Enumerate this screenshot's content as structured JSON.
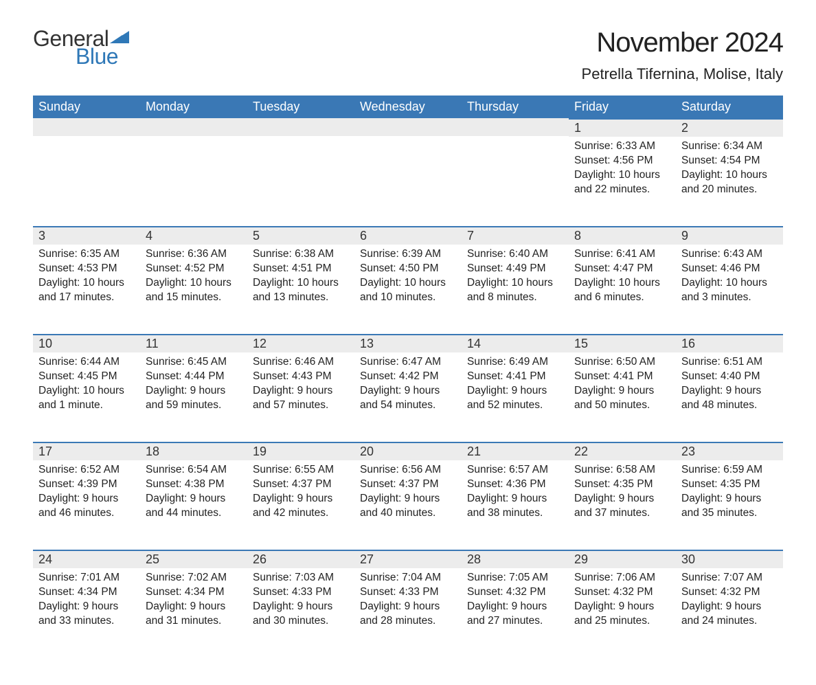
{
  "brand": {
    "general": "General",
    "blue": "Blue",
    "flag_color": "#2f78b7"
  },
  "title": "November 2024",
  "subtitle": "Petrella Tifernina, Molise, Italy",
  "colors": {
    "header_bg": "#3a78b5",
    "header_text": "#ffffff",
    "daynum_bg": "#ececec",
    "daynum_border": "#3a78b5",
    "text": "#222222",
    "brand_blue": "#2f78b7"
  },
  "weekdays": [
    "Sunday",
    "Monday",
    "Tuesday",
    "Wednesday",
    "Thursday",
    "Friday",
    "Saturday"
  ],
  "weeks": [
    [
      null,
      null,
      null,
      null,
      null,
      {
        "n": "1",
        "sunrise": "Sunrise: 6:33 AM",
        "sunset": "Sunset: 4:56 PM",
        "day1": "Daylight: 10 hours",
        "day2": "and 22 minutes."
      },
      {
        "n": "2",
        "sunrise": "Sunrise: 6:34 AM",
        "sunset": "Sunset: 4:54 PM",
        "day1": "Daylight: 10 hours",
        "day2": "and 20 minutes."
      }
    ],
    [
      {
        "n": "3",
        "sunrise": "Sunrise: 6:35 AM",
        "sunset": "Sunset: 4:53 PM",
        "day1": "Daylight: 10 hours",
        "day2": "and 17 minutes."
      },
      {
        "n": "4",
        "sunrise": "Sunrise: 6:36 AM",
        "sunset": "Sunset: 4:52 PM",
        "day1": "Daylight: 10 hours",
        "day2": "and 15 minutes."
      },
      {
        "n": "5",
        "sunrise": "Sunrise: 6:38 AM",
        "sunset": "Sunset: 4:51 PM",
        "day1": "Daylight: 10 hours",
        "day2": "and 13 minutes."
      },
      {
        "n": "6",
        "sunrise": "Sunrise: 6:39 AM",
        "sunset": "Sunset: 4:50 PM",
        "day1": "Daylight: 10 hours",
        "day2": "and 10 minutes."
      },
      {
        "n": "7",
        "sunrise": "Sunrise: 6:40 AM",
        "sunset": "Sunset: 4:49 PM",
        "day1": "Daylight: 10 hours",
        "day2": "and 8 minutes."
      },
      {
        "n": "8",
        "sunrise": "Sunrise: 6:41 AM",
        "sunset": "Sunset: 4:47 PM",
        "day1": "Daylight: 10 hours",
        "day2": "and 6 minutes."
      },
      {
        "n": "9",
        "sunrise": "Sunrise: 6:43 AM",
        "sunset": "Sunset: 4:46 PM",
        "day1": "Daylight: 10 hours",
        "day2": "and 3 minutes."
      }
    ],
    [
      {
        "n": "10",
        "sunrise": "Sunrise: 6:44 AM",
        "sunset": "Sunset: 4:45 PM",
        "day1": "Daylight: 10 hours",
        "day2": "and 1 minute."
      },
      {
        "n": "11",
        "sunrise": "Sunrise: 6:45 AM",
        "sunset": "Sunset: 4:44 PM",
        "day1": "Daylight: 9 hours",
        "day2": "and 59 minutes."
      },
      {
        "n": "12",
        "sunrise": "Sunrise: 6:46 AM",
        "sunset": "Sunset: 4:43 PM",
        "day1": "Daylight: 9 hours",
        "day2": "and 57 minutes."
      },
      {
        "n": "13",
        "sunrise": "Sunrise: 6:47 AM",
        "sunset": "Sunset: 4:42 PM",
        "day1": "Daylight: 9 hours",
        "day2": "and 54 minutes."
      },
      {
        "n": "14",
        "sunrise": "Sunrise: 6:49 AM",
        "sunset": "Sunset: 4:41 PM",
        "day1": "Daylight: 9 hours",
        "day2": "and 52 minutes."
      },
      {
        "n": "15",
        "sunrise": "Sunrise: 6:50 AM",
        "sunset": "Sunset: 4:41 PM",
        "day1": "Daylight: 9 hours",
        "day2": "and 50 minutes."
      },
      {
        "n": "16",
        "sunrise": "Sunrise: 6:51 AM",
        "sunset": "Sunset: 4:40 PM",
        "day1": "Daylight: 9 hours",
        "day2": "and 48 minutes."
      }
    ],
    [
      {
        "n": "17",
        "sunrise": "Sunrise: 6:52 AM",
        "sunset": "Sunset: 4:39 PM",
        "day1": "Daylight: 9 hours",
        "day2": "and 46 minutes."
      },
      {
        "n": "18",
        "sunrise": "Sunrise: 6:54 AM",
        "sunset": "Sunset: 4:38 PM",
        "day1": "Daylight: 9 hours",
        "day2": "and 44 minutes."
      },
      {
        "n": "19",
        "sunrise": "Sunrise: 6:55 AM",
        "sunset": "Sunset: 4:37 PM",
        "day1": "Daylight: 9 hours",
        "day2": "and 42 minutes."
      },
      {
        "n": "20",
        "sunrise": "Sunrise: 6:56 AM",
        "sunset": "Sunset: 4:37 PM",
        "day1": "Daylight: 9 hours",
        "day2": "and 40 minutes."
      },
      {
        "n": "21",
        "sunrise": "Sunrise: 6:57 AM",
        "sunset": "Sunset: 4:36 PM",
        "day1": "Daylight: 9 hours",
        "day2": "and 38 minutes."
      },
      {
        "n": "22",
        "sunrise": "Sunrise: 6:58 AM",
        "sunset": "Sunset: 4:35 PM",
        "day1": "Daylight: 9 hours",
        "day2": "and 37 minutes."
      },
      {
        "n": "23",
        "sunrise": "Sunrise: 6:59 AM",
        "sunset": "Sunset: 4:35 PM",
        "day1": "Daylight: 9 hours",
        "day2": "and 35 minutes."
      }
    ],
    [
      {
        "n": "24",
        "sunrise": "Sunrise: 7:01 AM",
        "sunset": "Sunset: 4:34 PM",
        "day1": "Daylight: 9 hours",
        "day2": "and 33 minutes."
      },
      {
        "n": "25",
        "sunrise": "Sunrise: 7:02 AM",
        "sunset": "Sunset: 4:34 PM",
        "day1": "Daylight: 9 hours",
        "day2": "and 31 minutes."
      },
      {
        "n": "26",
        "sunrise": "Sunrise: 7:03 AM",
        "sunset": "Sunset: 4:33 PM",
        "day1": "Daylight: 9 hours",
        "day2": "and 30 minutes."
      },
      {
        "n": "27",
        "sunrise": "Sunrise: 7:04 AM",
        "sunset": "Sunset: 4:33 PM",
        "day1": "Daylight: 9 hours",
        "day2": "and 28 minutes."
      },
      {
        "n": "28",
        "sunrise": "Sunrise: 7:05 AM",
        "sunset": "Sunset: 4:32 PM",
        "day1": "Daylight: 9 hours",
        "day2": "and 27 minutes."
      },
      {
        "n": "29",
        "sunrise": "Sunrise: 7:06 AM",
        "sunset": "Sunset: 4:32 PM",
        "day1": "Daylight: 9 hours",
        "day2": "and 25 minutes."
      },
      {
        "n": "30",
        "sunrise": "Sunrise: 7:07 AM",
        "sunset": "Sunset: 4:32 PM",
        "day1": "Daylight: 9 hours",
        "day2": "and 24 minutes."
      }
    ]
  ]
}
